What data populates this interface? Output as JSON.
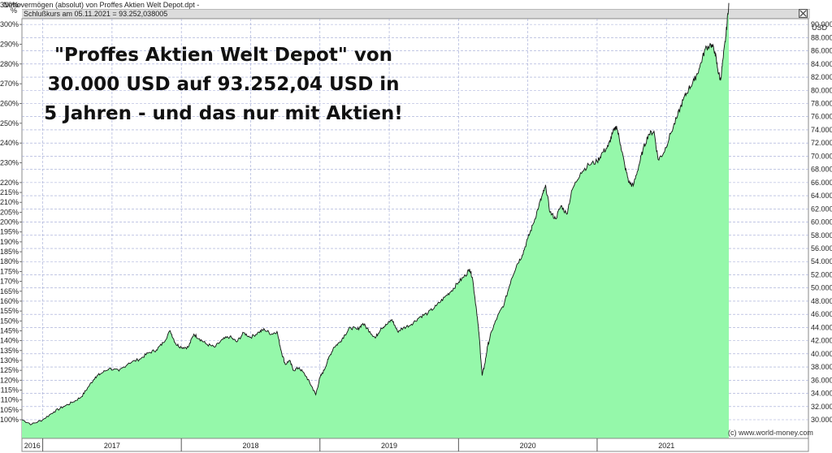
{
  "window_title": "Nettovermögen (absolut) von Proffes Aktien Welt Depot.dpt -",
  "info_bar": "Schlußkurs am 05.11.2021 = 93.252,038005",
  "left_unit": "%",
  "right_unit": "USD",
  "headline": {
    "line1": "\"Proffes Aktien Welt Depot\" von",
    "line2": "30.000 USD auf 93.252,04 USD in",
    "line3": "5 Jahren - und das nur mit Aktien!"
  },
  "copyright": "(c) www.world-money.com",
  "colors": {
    "area_fill": "#95f8aa",
    "line": "#111111",
    "grid": "#9ea6d4"
  },
  "chart_data": {
    "type": "area",
    "title": "Nettovermögen (absolut) von Proffes Aktien Welt Depot.dpt",
    "x_unit": "year",
    "y_unit": "USD",
    "years": [
      "2016",
      "2017",
      "2018",
      "2019",
      "2020",
      "2021"
    ],
    "xlim": [
      2016.85,
      2021.95
    ],
    "ylim": [
      28500,
      92500
    ],
    "y_right_ticks": [
      30000,
      32000,
      34000,
      36000,
      38000,
      40000,
      42000,
      44000,
      46000,
      48000,
      50000,
      52000,
      54000,
      56000,
      58000,
      60000,
      62000,
      64000,
      66000,
      68000,
      70000,
      72000,
      74000,
      76000,
      78000,
      80000,
      82000,
      84000,
      86000,
      88000,
      90000
    ],
    "y_right_labels": [
      "30.000",
      "32.000",
      "34.000",
      "36.000",
      "38.000",
      "40.000",
      "42.000",
      "44.000",
      "46.000",
      "48.000",
      "50.000",
      "52.000",
      "54.000",
      "56.000",
      "58.000",
      "60.000",
      "62.000",
      "64.000",
      "66.000",
      "68.000",
      "70.000",
      "72.000",
      "74.000",
      "76.000",
      "78.000",
      "80.000",
      "82.000",
      "84.000",
      "86.000",
      "88.000",
      "90.000"
    ],
    "y_left_ticks": [
      100,
      105,
      110,
      115,
      120,
      125,
      130,
      135,
      140,
      145,
      150,
      155,
      160,
      165,
      170,
      175,
      180,
      185,
      190,
      195,
      200,
      205,
      210,
      215,
      220,
      230,
      240,
      250,
      260,
      270,
      280,
      290,
      300,
      310
    ],
    "y_left_labels": [
      "100%",
      "105%",
      "110%",
      "115%",
      "120%",
      "125%",
      "130%",
      "135%",
      "140%",
      "145%",
      "150%",
      "155%",
      "160%",
      "165%",
      "170%",
      "175%",
      "180%",
      "185%",
      "190%",
      "195%",
      "200%",
      "205%",
      "210%",
      "215%",
      "220%",
      "230%",
      "240%",
      "250%",
      "260%",
      "270%",
      "280%",
      "290%",
      "300%",
      "310%"
    ],
    "grid": true,
    "series": [
      {
        "name": "Nettovermögen",
        "points": [
          [
            2016.85,
            30000
          ],
          [
            2016.92,
            29300
          ],
          [
            2017.0,
            30000
          ],
          [
            2017.08,
            31200
          ],
          [
            2017.15,
            32000
          ],
          [
            2017.22,
            32700
          ],
          [
            2017.28,
            33500
          ],
          [
            2017.33,
            35000
          ],
          [
            2017.38,
            36500
          ],
          [
            2017.42,
            37000
          ],
          [
            2017.48,
            37800
          ],
          [
            2017.55,
            37400
          ],
          [
            2017.62,
            38600
          ],
          [
            2017.7,
            39200
          ],
          [
            2017.76,
            40100
          ],
          [
            2017.82,
            40600
          ],
          [
            2017.87,
            41700
          ],
          [
            2017.92,
            43500
          ],
          [
            2017.96,
            41500
          ],
          [
            2018.0,
            41000
          ],
          [
            2018.05,
            41000
          ],
          [
            2018.09,
            43000
          ],
          [
            2018.13,
            42300
          ],
          [
            2018.18,
            41500
          ],
          [
            2018.24,
            41000
          ],
          [
            2018.3,
            42200
          ],
          [
            2018.35,
            42600
          ],
          [
            2018.4,
            41800
          ],
          [
            2018.45,
            43200
          ],
          [
            2018.5,
            42500
          ],
          [
            2018.56,
            43300
          ],
          [
            2018.6,
            43700
          ],
          [
            2018.65,
            43000
          ],
          [
            2018.69,
            43400
          ],
          [
            2018.72,
            40500
          ],
          [
            2018.75,
            38400
          ],
          [
            2018.78,
            39000
          ],
          [
            2018.81,
            37500
          ],
          [
            2018.85,
            37900
          ],
          [
            2018.9,
            36600
          ],
          [
            2018.94,
            35100
          ],
          [
            2018.97,
            33800
          ],
          [
            2019.0,
            36400
          ],
          [
            2019.03,
            37500
          ],
          [
            2019.06,
            39200
          ],
          [
            2019.1,
            41000
          ],
          [
            2019.14,
            41700
          ],
          [
            2019.18,
            42900
          ],
          [
            2019.22,
            44000
          ],
          [
            2019.27,
            43700
          ],
          [
            2019.31,
            44600
          ],
          [
            2019.36,
            43400
          ],
          [
            2019.4,
            42400
          ],
          [
            2019.44,
            43900
          ],
          [
            2019.48,
            44400
          ],
          [
            2019.52,
            45200
          ],
          [
            2019.56,
            43400
          ],
          [
            2019.6,
            43900
          ],
          [
            2019.66,
            44500
          ],
          [
            2019.72,
            45600
          ],
          [
            2019.78,
            46200
          ],
          [
            2019.84,
            47300
          ],
          [
            2019.9,
            48600
          ],
          [
            2019.95,
            49600
          ],
          [
            2020.0,
            50900
          ],
          [
            2020.05,
            51900
          ],
          [
            2020.08,
            52900
          ],
          [
            2020.1,
            51600
          ],
          [
            2020.13,
            46600
          ],
          [
            2020.15,
            42500
          ],
          [
            2020.17,
            36700
          ],
          [
            2020.19,
            38500
          ],
          [
            2020.21,
            41200
          ],
          [
            2020.24,
            43500
          ],
          [
            2020.28,
            45600
          ],
          [
            2020.33,
            47600
          ],
          [
            2020.38,
            51300
          ],
          [
            2020.42,
            53500
          ],
          [
            2020.46,
            55000
          ],
          [
            2020.5,
            57500
          ],
          [
            2020.54,
            59800
          ],
          [
            2020.58,
            62500
          ],
          [
            2020.61,
            64400
          ],
          [
            2020.63,
            65400
          ],
          [
            2020.66,
            61500
          ],
          [
            2020.7,
            60500
          ],
          [
            2020.74,
            62500
          ],
          [
            2020.78,
            61200
          ],
          [
            2020.82,
            64900
          ],
          [
            2020.88,
            67500
          ],
          [
            2020.94,
            68700
          ],
          [
            2021.0,
            69200
          ],
          [
            2021.04,
            70600
          ],
          [
            2021.08,
            71500
          ],
          [
            2021.11,
            73400
          ],
          [
            2021.14,
            74600
          ],
          [
            2021.17,
            71700
          ],
          [
            2021.2,
            68500
          ],
          [
            2021.23,
            66000
          ],
          [
            2021.26,
            65500
          ],
          [
            2021.3,
            68500
          ],
          [
            2021.33,
            70900
          ],
          [
            2021.37,
            73300
          ],
          [
            2021.41,
            73800
          ],
          [
            2021.44,
            69500
          ],
          [
            2021.48,
            70500
          ],
          [
            2021.53,
            73400
          ],
          [
            2021.58,
            76100
          ],
          [
            2021.62,
            78500
          ],
          [
            2021.66,
            80200
          ],
          [
            2021.7,
            81500
          ],
          [
            2021.74,
            83500
          ],
          [
            2021.78,
            86300
          ],
          [
            2021.82,
            87000
          ],
          [
            2021.85,
            85900
          ],
          [
            2021.87,
            83200
          ],
          [
            2021.89,
            81500
          ],
          [
            2021.91,
            85000
          ],
          [
            2021.93,
            88500
          ],
          [
            2021.95,
            93252
          ]
        ]
      }
    ]
  }
}
